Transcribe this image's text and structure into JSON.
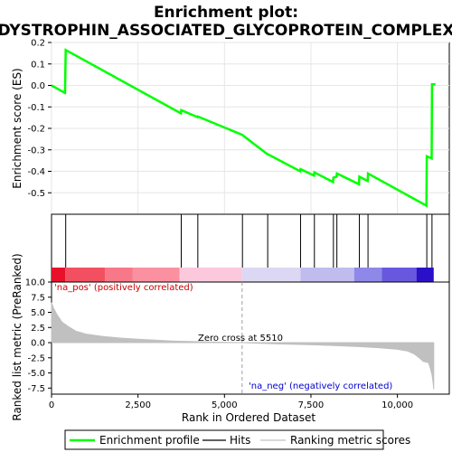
{
  "chart_data": {
    "type": "line",
    "title": "Enrichment plot:",
    "subtitle": "DYSTROPHIN_ASSOCIATED_GLYCOPROTEIN_COMPLEX",
    "xlabel": "Rank in Ordered Dataset",
    "es_ylabel": "Enrichment score (ES)",
    "metric_ylabel": "Ranked list metric (PreRanked)",
    "xlim": [
      0,
      11500
    ],
    "es_ylim": [
      -0.6,
      0.2
    ],
    "metric_ylim": [
      -8.5,
      10.0
    ],
    "x_ticks": [
      0,
      2500,
      5000,
      7500,
      10000
    ],
    "x_tick_labels": [
      "0",
      "2,500",
      "5,000",
      "7,500",
      "10,000"
    ],
    "es_ticks": [
      0.2,
      0.1,
      0.0,
      -0.1,
      -0.2,
      -0.3,
      -0.4,
      -0.5
    ],
    "es_tick_labels": [
      "0.2",
      "0.1",
      "0.0",
      "-0.1",
      "-0.2",
      "-0.3",
      "-0.4",
      "-0.5"
    ],
    "metric_ticks": [
      10.0,
      7.5,
      5.0,
      2.5,
      0.0,
      -2.5,
      -5.0,
      -7.5
    ],
    "metric_tick_labels": [
      "10.0",
      "7.5",
      "5.0",
      "2.5",
      "0.0",
      "-2.5",
      "-5.0",
      "-7.5"
    ],
    "n_genes": 11050,
    "zero_cross_rank": 5510,
    "zero_cross_label": "Zero cross at 5510",
    "pos_label": "'na_pos' (positively correlated)",
    "neg_label": "'na_neg' (negatively correlated)",
    "hits": [
      410,
      3750,
      4230,
      5520,
      6250,
      7200,
      7600,
      8150,
      8250,
      8900,
      9150,
      10850,
      11000
    ],
    "enrichment_profile": [
      [
        0,
        0.0
      ],
      [
        390,
        -0.035
      ],
      [
        410,
        0.165
      ],
      [
        3740,
        -0.13
      ],
      [
        3750,
        -0.115
      ],
      [
        4220,
        -0.148
      ],
      [
        4230,
        -0.145
      ],
      [
        5510,
        -0.23
      ],
      [
        6240,
        -0.32
      ],
      [
        6250,
        -0.32
      ],
      [
        7190,
        -0.4
      ],
      [
        7200,
        -0.39
      ],
      [
        7590,
        -0.42
      ],
      [
        7600,
        -0.405
      ],
      [
        8140,
        -0.45
      ],
      [
        8150,
        -0.43
      ],
      [
        8240,
        -0.425
      ],
      [
        8250,
        -0.41
      ],
      [
        8890,
        -0.46
      ],
      [
        8900,
        -0.425
      ],
      [
        9140,
        -0.445
      ],
      [
        9150,
        -0.41
      ],
      [
        10840,
        -0.56
      ],
      [
        10850,
        -0.33
      ],
      [
        10990,
        -0.34
      ],
      [
        11000,
        0.005
      ],
      [
        11100,
        0.005
      ]
    ],
    "metric_profile": [
      [
        0,
        6.6
      ],
      [
        50,
        5.8
      ],
      [
        150,
        4.7
      ],
      [
        300,
        3.4
      ],
      [
        500,
        2.6
      ],
      [
        700,
        1.9
      ],
      [
        1000,
        1.4
      ],
      [
        1500,
        1.0
      ],
      [
        2000,
        0.75
      ],
      [
        2500,
        0.55
      ],
      [
        3000,
        0.4
      ],
      [
        3500,
        0.28
      ],
      [
        4000,
        0.2
      ],
      [
        4500,
        0.12
      ],
      [
        5000,
        0.06
      ],
      [
        5510,
        0.0
      ],
      [
        6000,
        -0.1
      ],
      [
        6500,
        -0.2
      ],
      [
        7000,
        -0.28
      ],
      [
        7500,
        -0.36
      ],
      [
        8000,
        -0.45
      ],
      [
        8500,
        -0.55
      ],
      [
        9000,
        -0.68
      ],
      [
        9500,
        -0.85
      ],
      [
        10000,
        -1.1
      ],
      [
        10300,
        -1.4
      ],
      [
        10500,
        -1.9
      ],
      [
        10650,
        -2.6
      ],
      [
        10750,
        -3.1
      ],
      [
        10900,
        -3.3
      ],
      [
        10950,
        -4.2
      ],
      [
        11000,
        -5.3
      ],
      [
        11030,
        -6.5
      ],
      [
        11050,
        -7.7
      ]
    ],
    "legend": [
      "Enrichment profile",
      "Hits",
      "Ranking metric scores"
    ],
    "colors": {
      "profile": "#00ff00",
      "hits": "#000000",
      "metric_fill": "#c0c0c0",
      "zero_line": "#a0a0a0",
      "pos_text": "#cc0000",
      "neg_text": "#0000cc"
    },
    "heatmap_segments": [
      {
        "start": 0,
        "end": 400,
        "color": "#e8102a"
      },
      {
        "start": 400,
        "end": 1550,
        "color": "#f25060"
      },
      {
        "start": 1550,
        "end": 2350,
        "color": "#f77888"
      },
      {
        "start": 2350,
        "end": 3700,
        "color": "#fa90a0"
      },
      {
        "start": 3700,
        "end": 5510,
        "color": "#fcc8dc"
      },
      {
        "start": 5510,
        "end": 7200,
        "color": "#dcd8f4"
      },
      {
        "start": 7200,
        "end": 8750,
        "color": "#c0bcee"
      },
      {
        "start": 8750,
        "end": 9550,
        "color": "#8e88e8"
      },
      {
        "start": 9550,
        "end": 10550,
        "color": "#6858e0"
      },
      {
        "start": 10550,
        "end": 11050,
        "color": "#2a10c8"
      }
    ]
  }
}
